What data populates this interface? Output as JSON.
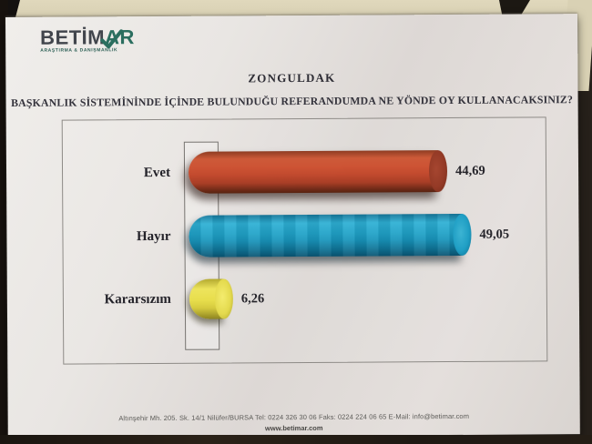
{
  "logo": {
    "brand_prefix": "BETİM",
    "brand_suffix": "AR",
    "tagline": "ARAŞTIRMA & DANIŞMANLIK",
    "prefix_color": "#41454c",
    "suffix_color": "#2b6e5f"
  },
  "header": {
    "region_title": "ZONGULDAK",
    "question": "BAŞKANLIK SİSTEMİNİNDE İÇİNDE BULUNDUĞU REFERANDUMDA NE YÖNDE OY KULLANACAKSINIZ?"
  },
  "chart_data": {
    "type": "bar",
    "orientation": "horizontal",
    "style": "3d-cylinder",
    "categories": [
      "Evet",
      "Hayır",
      "Kararsızım"
    ],
    "values": [
      44.69,
      49.05,
      6.26
    ],
    "value_labels": [
      "44,69",
      "49,05",
      "6,26"
    ],
    "bar_colors": [
      "#c24a2e",
      "#1d9fc4",
      "#e4da4e"
    ],
    "xlim": [
      0,
      55
    ],
    "grid": false,
    "legend": "none",
    "value_label_position": "end-of-bar"
  },
  "footer": {
    "address_line": "Altınşehir Mh. 205. Sk. 14/1  Nilüfer/BURSA Tel: 0224 326 30 06  Faks: 0224 224 06 65  E-Mail: info@betimar.com",
    "website": "www.betimar.com"
  }
}
